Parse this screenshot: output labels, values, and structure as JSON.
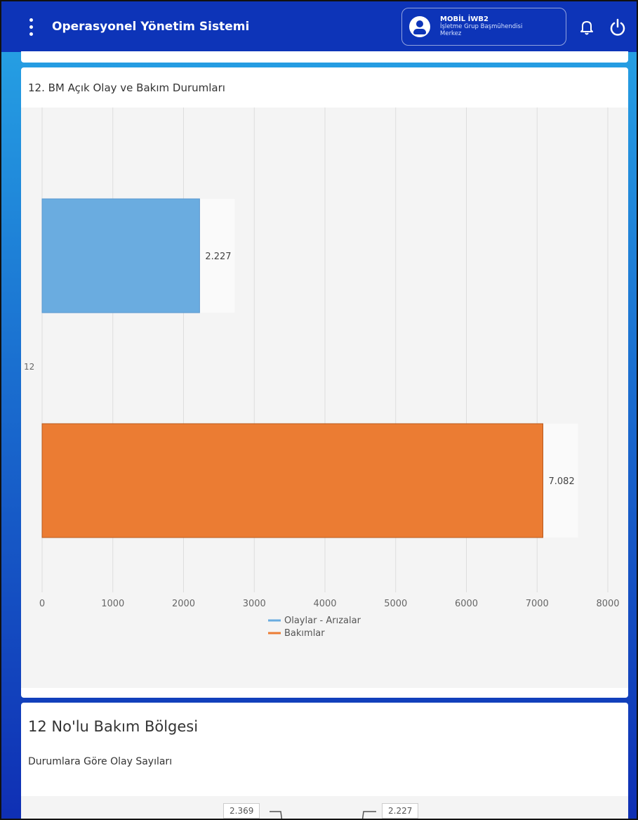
{
  "header": {
    "title": "Operasyonel Yönetim Sistemi",
    "user_name": "MOBİL İWB2",
    "user_role_line1": "İşletme Grup Başmühendisi",
    "user_role_line2": "Merkez",
    "menu_icon": "more-vertical-icon",
    "bell_icon": "bell-icon",
    "power_icon": "power-icon"
  },
  "chart_card": {
    "title": "12. BM Açık Olay ve Bakım Durumları"
  },
  "chart_data": {
    "type": "bar",
    "orientation": "horizontal",
    "title": "12. BM Açık Olay ve Bakım Durumları",
    "categories": [
      "12"
    ],
    "series": [
      {
        "name": "Olaylar - Arızalar",
        "values": [
          2227
        ],
        "label": "2.227",
        "color": "#6aace0"
      },
      {
        "name": "Bakımlar",
        "values": [
          7082
        ],
        "label": "7.082",
        "color": "#eb7c33"
      }
    ],
    "xlim": [
      0,
      8000
    ],
    "xticks": [
      "0",
      "1000",
      "2000",
      "3000",
      "4000",
      "5000",
      "6000",
      "7000",
      "8000"
    ],
    "grid": true,
    "legend": "bottom"
  },
  "region_card": {
    "title": "12 No'lu Bakım Bölgesi",
    "subtitle": "Durumlara Göre Olay Sayıları",
    "labels": [
      "2.369",
      "2.227"
    ]
  }
}
